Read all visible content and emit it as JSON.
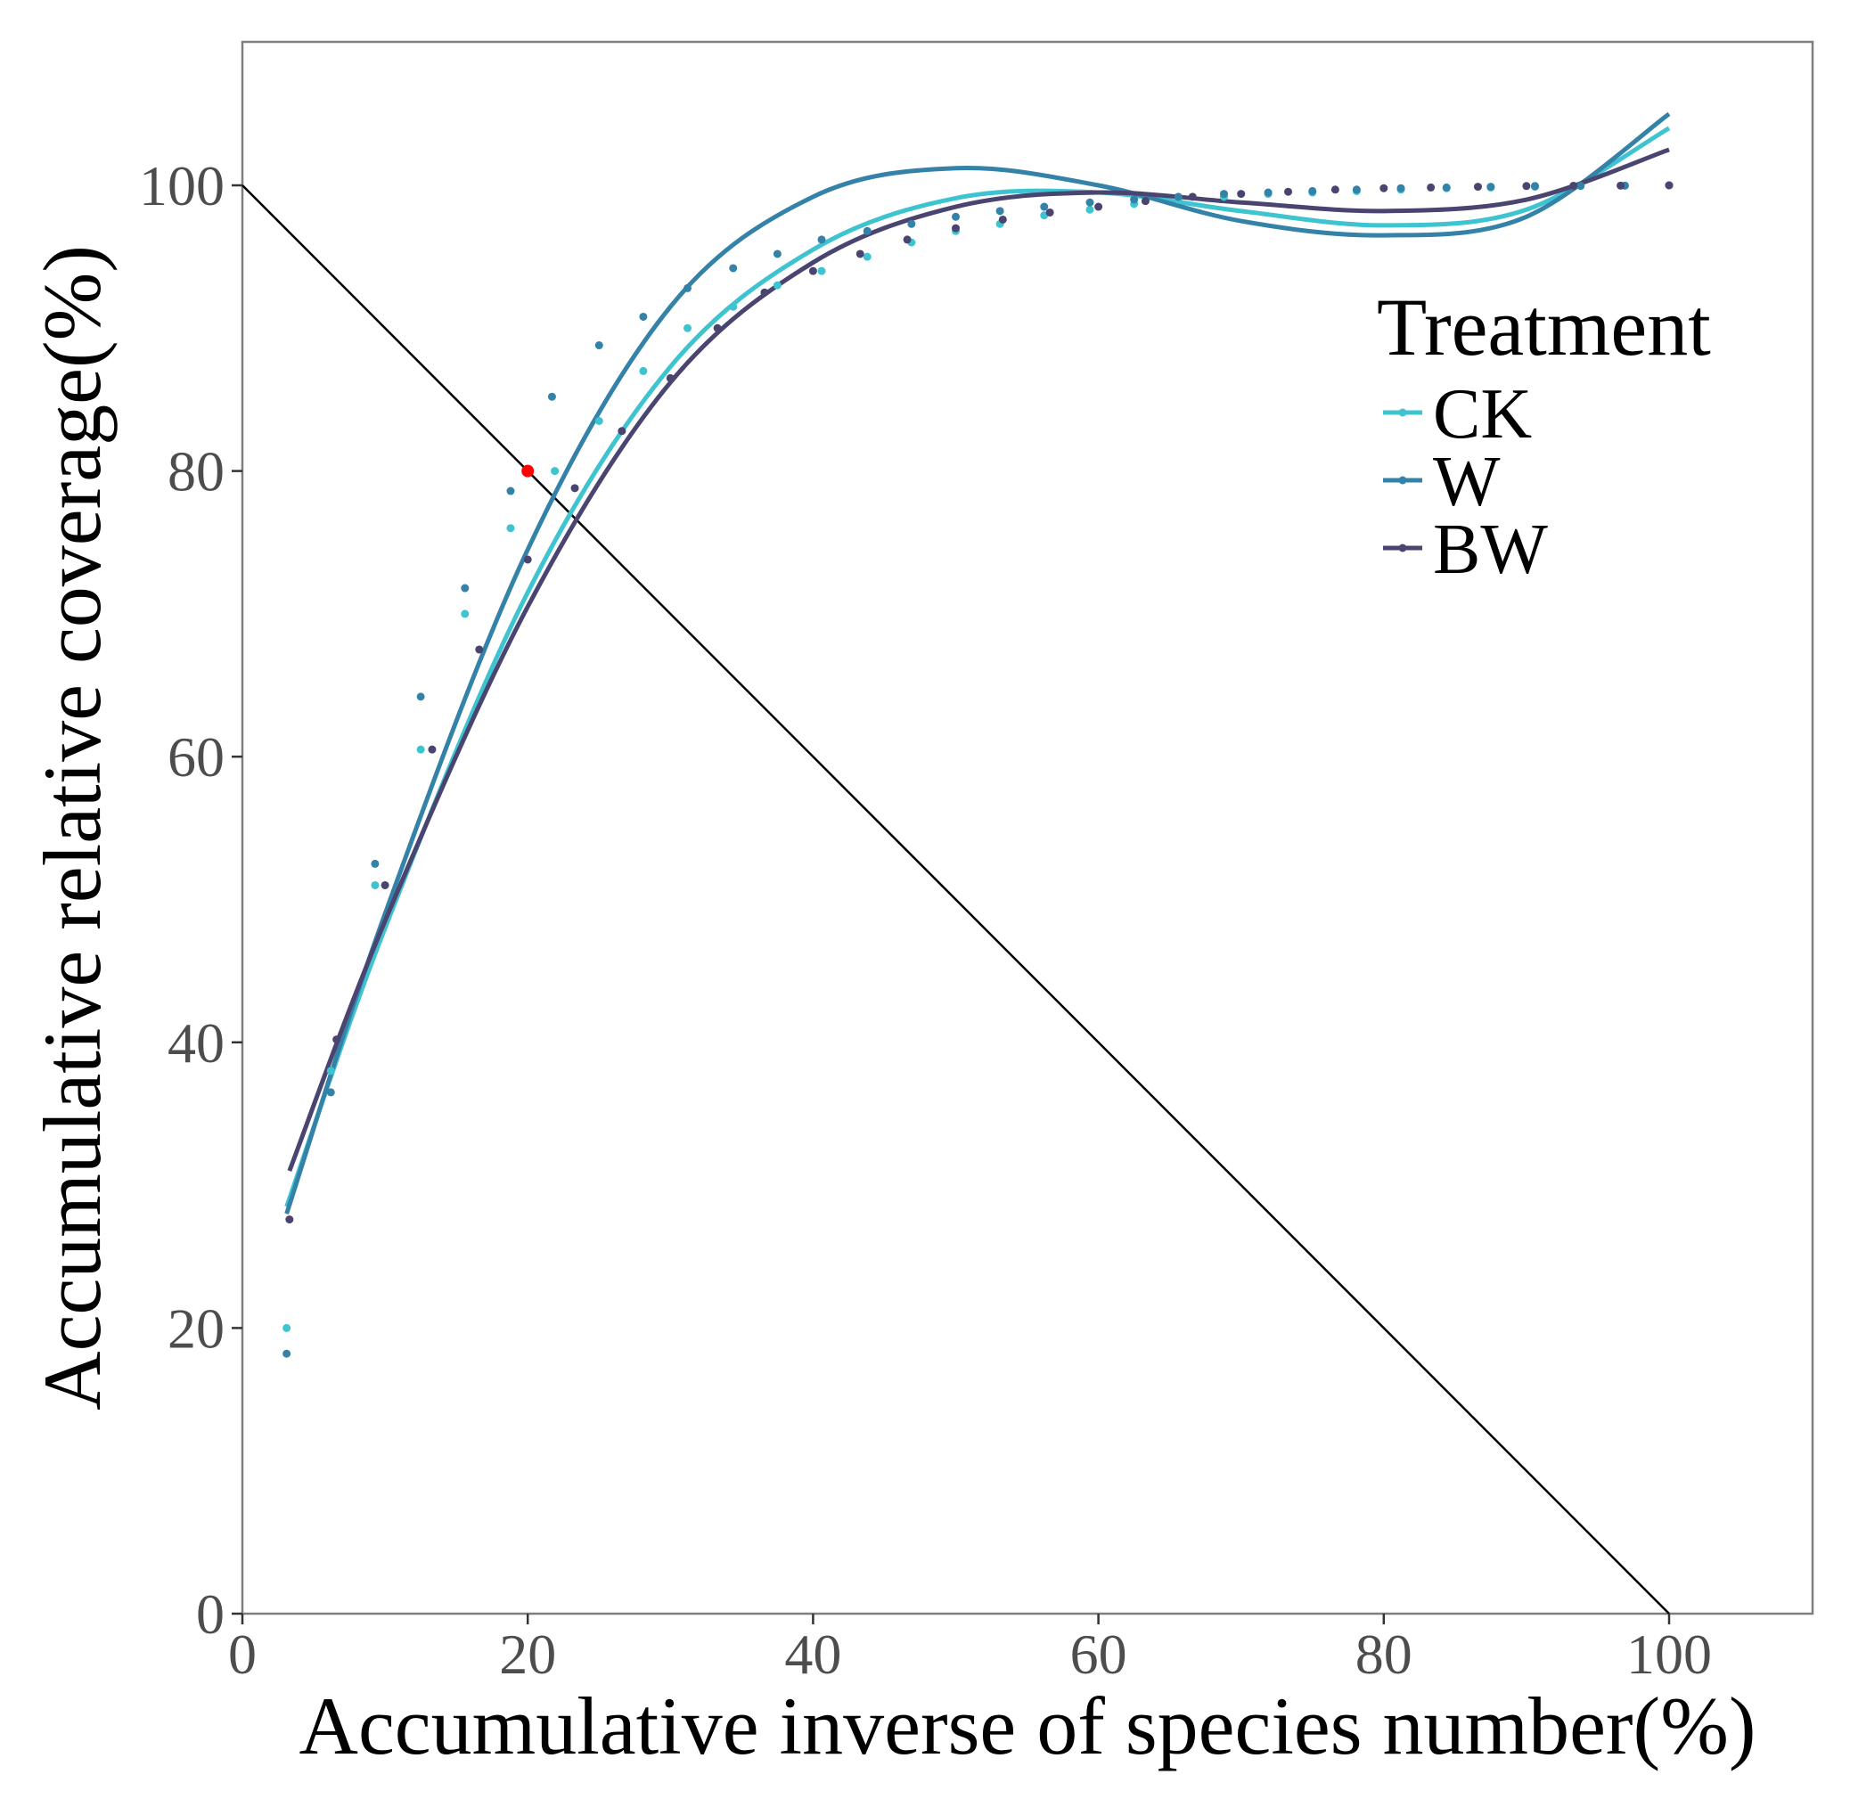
{
  "chart_data": {
    "type": "scatter",
    "title": "",
    "xlabel": "Accumulative inverse of species number(%)",
    "ylabel": "Accumulative relative coverage(%)",
    "xlim": [
      0,
      110
    ],
    "ylim": [
      0,
      110
    ],
    "xticks": [
      0,
      20,
      40,
      60,
      80,
      100
    ],
    "yticks": [
      0,
      20,
      40,
      60,
      80,
      100
    ],
    "grid": false,
    "legend": {
      "title": "Treatment",
      "placement": "top-right"
    },
    "reference_line": {
      "from": [
        0,
        100
      ],
      "to": [
        100,
        0
      ],
      "color": "#000000"
    },
    "highlight_point": {
      "x": 20,
      "y": 80,
      "color": "#ff0000"
    },
    "series": [
      {
        "name": "CK",
        "color": "#3ec3d0",
        "points": [
          [
            3.1,
            20
          ],
          [
            6.2,
            38
          ],
          [
            9.3,
            51
          ],
          [
            12.5,
            60.5
          ],
          [
            15.6,
            70
          ],
          [
            18.8,
            76
          ],
          [
            21.9,
            80
          ],
          [
            25,
            83.5
          ],
          [
            28.1,
            87
          ],
          [
            31.2,
            90
          ],
          [
            34.4,
            91.5
          ],
          [
            37.5,
            93
          ],
          [
            40.6,
            94
          ],
          [
            43.8,
            95
          ],
          [
            46.9,
            96
          ],
          [
            50,
            96.8
          ],
          [
            53.1,
            97.3
          ],
          [
            56.2,
            97.9
          ],
          [
            59.4,
            98.3
          ],
          [
            62.5,
            98.7
          ],
          [
            65.6,
            99
          ],
          [
            68.8,
            99.2
          ],
          [
            71.9,
            99.4
          ],
          [
            75,
            99.5
          ],
          [
            78.1,
            99.6
          ],
          [
            81.2,
            99.7
          ],
          [
            84.4,
            99.8
          ],
          [
            87.5,
            99.85
          ],
          [
            90.6,
            99.9
          ],
          [
            93.8,
            99.95
          ],
          [
            96.9,
            99.98
          ],
          [
            100,
            100
          ]
        ],
        "fit": [
          [
            3.1,
            28.5
          ],
          [
            10,
            48
          ],
          [
            20,
            71.5
          ],
          [
            30,
            87.3
          ],
          [
            40,
            95.5
          ],
          [
            50,
            99.1
          ],
          [
            60,
            99.5
          ],
          [
            70,
            98.2
          ],
          [
            80,
            97.2
          ],
          [
            90,
            98.3
          ],
          [
            100,
            104
          ]
        ]
      },
      {
        "name": "W",
        "color": "#3482a8",
        "points": [
          [
            3.1,
            18.2
          ],
          [
            6.2,
            36.5
          ],
          [
            9.3,
            52.5
          ],
          [
            12.5,
            64.2
          ],
          [
            15.6,
            71.8
          ],
          [
            18.8,
            78.6
          ],
          [
            21.7,
            85.2
          ],
          [
            25,
            88.8
          ],
          [
            28.1,
            90.8
          ],
          [
            31.2,
            92.8
          ],
          [
            34.4,
            94.2
          ],
          [
            37.5,
            95.2
          ],
          [
            40.6,
            96.2
          ],
          [
            43.8,
            96.8
          ],
          [
            46.9,
            97.3
          ],
          [
            50,
            97.8
          ],
          [
            53.1,
            98.2
          ],
          [
            56.2,
            98.5
          ],
          [
            59.4,
            98.8
          ],
          [
            62.5,
            99
          ],
          [
            65.6,
            99.2
          ],
          [
            68.8,
            99.4
          ],
          [
            71.9,
            99.5
          ],
          [
            75,
            99.6
          ],
          [
            78.1,
            99.7
          ],
          [
            81.2,
            99.8
          ],
          [
            84.4,
            99.85
          ],
          [
            87.5,
            99.9
          ],
          [
            90.6,
            99.95
          ],
          [
            93.8,
            99.97
          ],
          [
            96.9,
            99.98
          ],
          [
            100,
            100
          ]
        ],
        "fit": [
          [
            3.1,
            28
          ],
          [
            10,
            49
          ],
          [
            20,
            74.5
          ],
          [
            30,
            91.5
          ],
          [
            40,
            99.2
          ],
          [
            50,
            101.2
          ],
          [
            60,
            100
          ],
          [
            70,
            97.5
          ],
          [
            80,
            96.5
          ],
          [
            90,
            97.8
          ],
          [
            100,
            105
          ]
        ]
      },
      {
        "name": "BW",
        "color": "#4a4470",
        "points": [
          [
            3.3,
            27.6
          ],
          [
            6.6,
            40.2
          ],
          [
            10,
            51
          ],
          [
            13.3,
            60.5
          ],
          [
            16.6,
            67.5
          ],
          [
            20,
            73.8
          ],
          [
            23.3,
            78.8
          ],
          [
            26.6,
            82.8
          ],
          [
            30,
            86.5
          ],
          [
            33.3,
            90
          ],
          [
            36.6,
            92.5
          ],
          [
            40,
            94
          ],
          [
            43.3,
            95.2
          ],
          [
            46.6,
            96.2
          ],
          [
            50,
            97
          ],
          [
            53.3,
            97.6
          ],
          [
            56.6,
            98.1
          ],
          [
            60,
            98.5
          ],
          [
            63.3,
            98.9
          ],
          [
            66.6,
            99.2
          ],
          [
            70,
            99.4
          ],
          [
            73.3,
            99.55
          ],
          [
            76.6,
            99.7
          ],
          [
            80,
            99.8
          ],
          [
            83.3,
            99.85
          ],
          [
            86.6,
            99.9
          ],
          [
            90,
            99.95
          ],
          [
            93.3,
            99.97
          ],
          [
            96.6,
            99.98
          ],
          [
            100,
            100
          ]
        ],
        "fit": [
          [
            3.3,
            31
          ],
          [
            10,
            48.5
          ],
          [
            20,
            70.5
          ],
          [
            30,
            86.2
          ],
          [
            40,
            94.6
          ],
          [
            50,
            98.5
          ],
          [
            60,
            99.5
          ],
          [
            70,
            98.8
          ],
          [
            80,
            98.2
          ],
          [
            90,
            99
          ],
          [
            100,
            102.5
          ]
        ]
      }
    ]
  }
}
